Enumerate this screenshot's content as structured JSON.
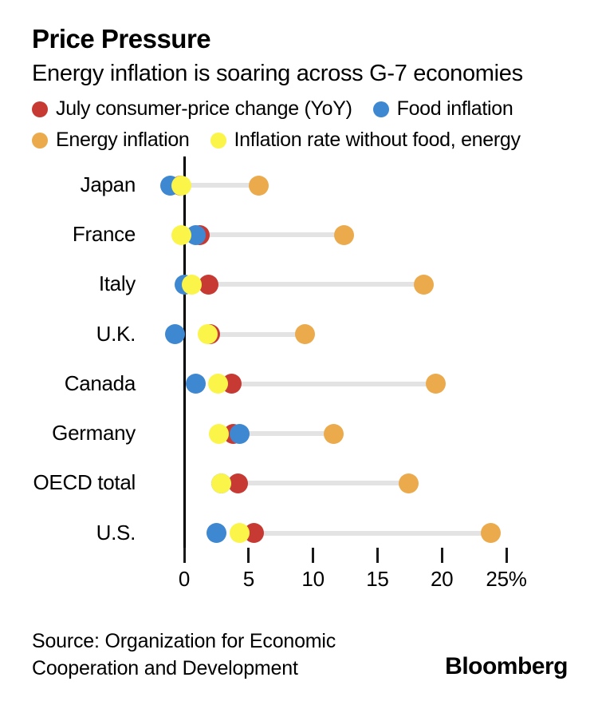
{
  "header": {
    "title": "Price Pressure",
    "subtitle": "Energy inflation is soaring across G-7 economies"
  },
  "chart_data": {
    "type": "scatter",
    "variant": "horizontal-dumbbell-dot-plot",
    "unit": "%",
    "title": "Price Pressure",
    "subtitle": "Energy inflation is soaring across G-7 economies",
    "categories": [
      "Japan",
      "France",
      "Italy",
      "U.K.",
      "Canada",
      "Germany",
      "OECD total",
      "U.S."
    ],
    "series": [
      {
        "key": "cpi",
        "name": "July consumer-price change (YoY)",
        "color": "#c73a34",
        "values": [
          -0.3,
          1.2,
          1.9,
          2.0,
          3.7,
          3.8,
          4.2,
          5.4
        ]
      },
      {
        "key": "food",
        "name": "Food inflation",
        "color": "#3e87d1",
        "values": [
          -1.1,
          0.9,
          0.0,
          -0.7,
          0.9,
          4.3,
          2.9,
          2.5
        ]
      },
      {
        "key": "energy",
        "name": "Energy inflation",
        "color": "#ebaa4b",
        "values": [
          5.8,
          12.4,
          18.6,
          9.4,
          19.5,
          11.6,
          17.4,
          23.8
        ]
      },
      {
        "key": "core",
        "name": "Inflation rate without food, energy",
        "color": "#fbf54a",
        "values": [
          -0.2,
          -0.2,
          0.6,
          1.8,
          2.6,
          2.7,
          2.9,
          4.3
        ]
      }
    ],
    "x_axis": {
      "min": 0,
      "max": 25,
      "ticks": [
        0,
        5,
        10,
        15,
        20,
        25
      ],
      "tick_labels": [
        "0",
        "5",
        "10",
        "15",
        "20",
        "25%"
      ]
    },
    "connector": {
      "from_series": "cpi",
      "to_series": "energy",
      "color": "#e3e3e3"
    },
    "legend_position": "top",
    "grid": false,
    "axis_color": "#000000"
  },
  "footer": {
    "source_line1": "Source: Organization for Economic",
    "source_line2": "Cooperation and Development",
    "brand": "Bloomberg"
  }
}
